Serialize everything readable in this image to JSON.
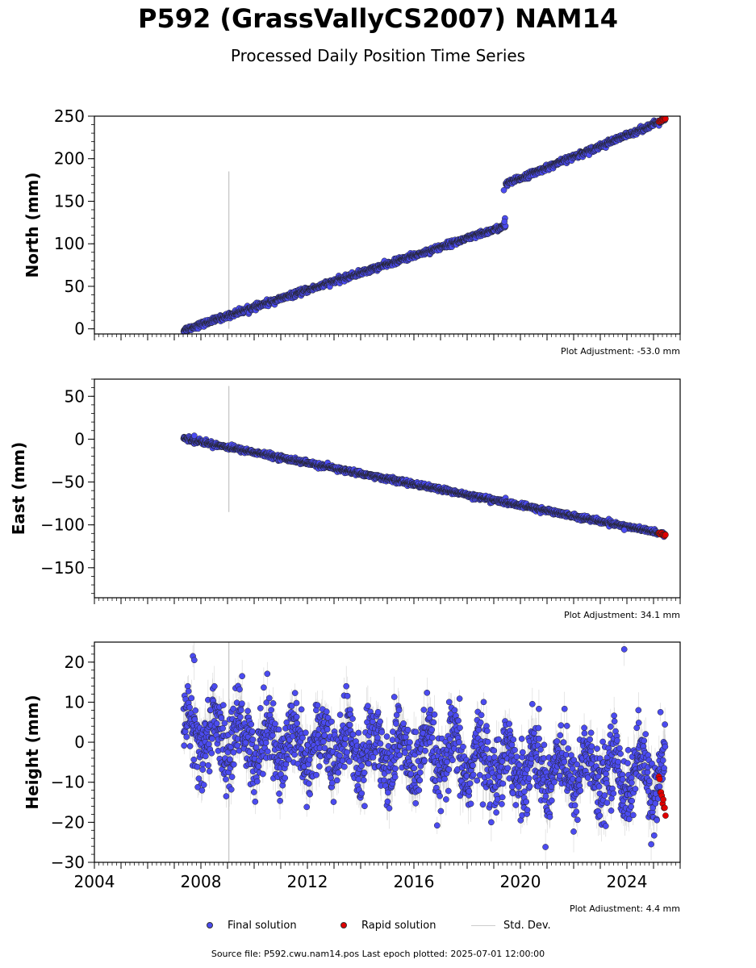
{
  "header": {
    "title": "P592 (GrassVallyCS2007) NAM14",
    "subtitle": "Processed Daily Position Time Series"
  },
  "legend": {
    "final": "Final solution",
    "rapid": "Rapid solution",
    "stddev": "Std. Dev."
  },
  "footer": {
    "source": "Source file: P592.cwu.nam14.pos  Last epoch plotted: 2025-07-01 12:00:00"
  },
  "colors": {
    "final": "#4b4bf0",
    "rapid": "#e00000",
    "stddev": "#b4b4b4",
    "marker_edge": "#222222"
  },
  "chart_data": [
    {
      "type": "scatter",
      "name_key": "north",
      "ylabel": "North (mm)",
      "adjustment": "Plot Adjustment: -53.0 mm",
      "xlim": [
        2004,
        2026
      ],
      "ylim": [
        -6,
        250
      ],
      "yticks": [
        0,
        50,
        100,
        150,
        200,
        250
      ],
      "xticks_labels": [],
      "segments": [
        {
          "t0": 2007.35,
          "t1": 2019.45,
          "y0": -1.5,
          "y1": 121
        },
        {
          "t0": 2019.45,
          "t1": 2025.45,
          "y0": 170,
          "y1": 246
        }
      ],
      "noise": 1.6,
      "sigma": 2.2,
      "outliers": [
        {
          "t": 2019.38,
          "v": 163
        },
        {
          "t": 2019.42,
          "v": 130
        },
        {
          "t": 2019.4,
          "v": 126
        }
      ],
      "spikes": [
        {
          "t": 2009.05,
          "lo": 0,
          "hi": 185
        }
      ],
      "rapid": {
        "t0": 2025.2,
        "t1": 2025.45,
        "y0": 244,
        "y1": 247
      }
    },
    {
      "type": "scatter",
      "name_key": "east",
      "ylabel": "East (mm)",
      "adjustment": "Plot Adjustment: 34.1 mm",
      "xlim": [
        2004,
        2026
      ],
      "ylim": [
        -185,
        70
      ],
      "yticks": [
        -150,
        -100,
        -50,
        0,
        50
      ],
      "xticks_labels": [],
      "segments": [
        {
          "t0": 2007.35,
          "t1": 2025.45,
          "y0": 1,
          "y1": -111
        }
      ],
      "noise": 1.4,
      "sigma": 2.0,
      "outliers": [
        {
          "t": 2007.75,
          "v": 4
        },
        {
          "t": 2023.9,
          "v": -106
        }
      ],
      "spikes": [
        {
          "t": 2009.05,
          "lo": -85,
          "hi": 62
        }
      ],
      "rapid": {
        "t0": 2025.2,
        "t1": 2025.45,
        "y0": -110,
        "y1": -112
      }
    },
    {
      "type": "scatter",
      "name_key": "height",
      "ylabel": "Height (mm)",
      "adjustment": "Plot Adjustment: 4.4 mm",
      "xlim": [
        2004,
        2026
      ],
      "ylim": [
        -30,
        25
      ],
      "yticks": [
        -30,
        -20,
        -10,
        0,
        10,
        20
      ],
      "xticks_labels": [
        "2004",
        "2008",
        "2012",
        "2016",
        "2020",
        "2024"
      ],
      "segments": [
        {
          "t0": 2007.35,
          "t1": 2025.45,
          "y0": 2,
          "y1": -9
        }
      ],
      "seasonal": 5,
      "noise": 4.5,
      "sigma": 3.5,
      "outliers": [
        {
          "t": 2023.9,
          "v": 23.2
        },
        {
          "t": 2007.7,
          "v": 21.5
        },
        {
          "t": 2007.75,
          "v": 20.5
        },
        {
          "t": 2009.55,
          "v": 16.5
        }
      ],
      "spikes": [
        {
          "t": 2009.05,
          "lo": -30,
          "hi": 25
        }
      ],
      "rapid": {
        "t0": 2025.2,
        "t1": 2025.45,
        "y0": -9,
        "y1": -18
      }
    }
  ]
}
